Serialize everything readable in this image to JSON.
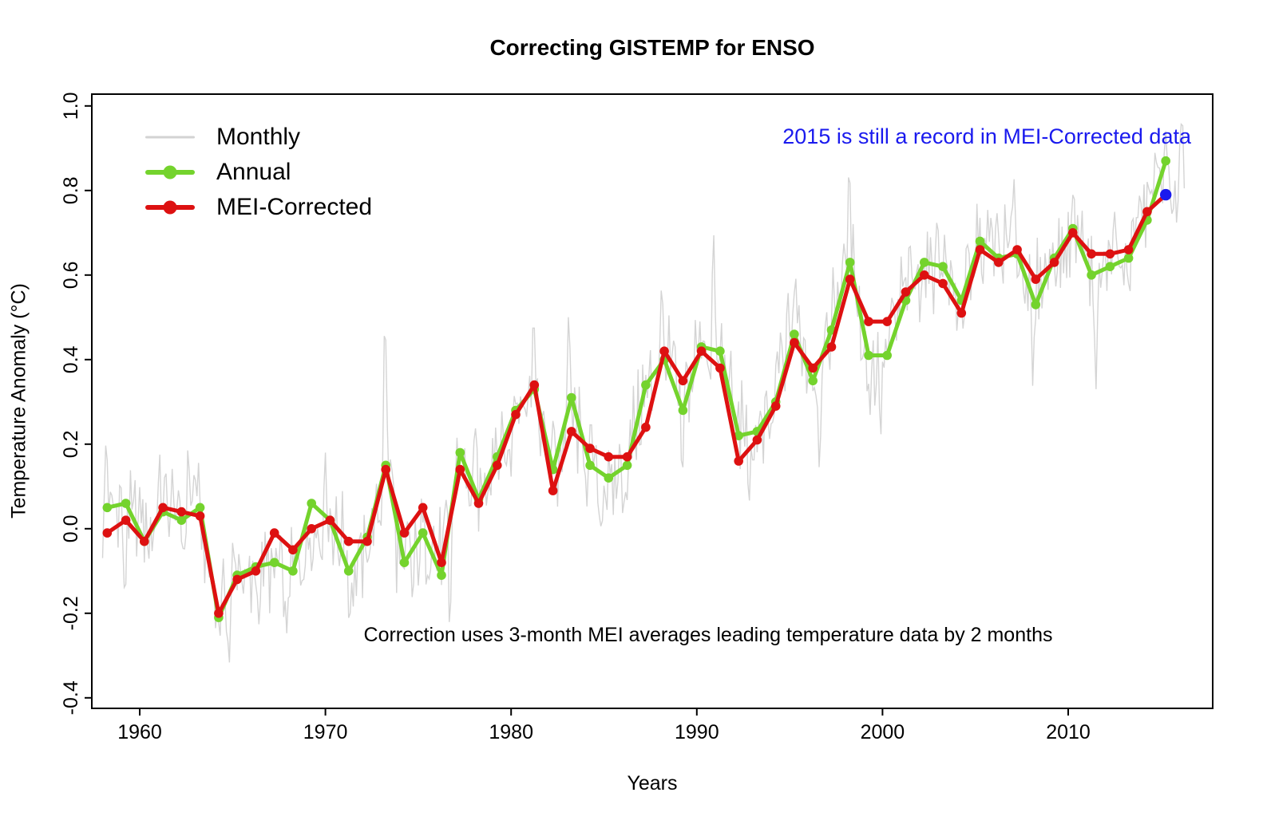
{
  "title": "Correcting GISTEMP for ENSO",
  "annotations": {
    "record_note": {
      "text": "2015 is still a record in MEI-Corrected data",
      "color": "#1a1aee"
    },
    "method_note": {
      "text": "Correction uses 3-month MEI averages leading temperature data by 2 months",
      "color": "#000000"
    }
  },
  "legend": {
    "items": [
      {
        "label": "Monthly",
        "color": "#d3d3d3",
        "marker": "line"
      },
      {
        "label": "Annual",
        "color": "#74d32d",
        "marker": "line-dot"
      },
      {
        "label": "MEI-Corrected",
        "color": "#dd1111",
        "marker": "line-dot"
      }
    ]
  },
  "chart_data": {
    "type": "line",
    "title": "Correcting GISTEMP for ENSO",
    "xlabel": "Years",
    "ylabel": "Temperature Anomaly (°C)",
    "xlim": [
      1957.42,
      2017.78
    ],
    "ylim": [
      -0.425,
      1.028
    ],
    "x_ticks": [
      1960,
      1970,
      1980,
      1990,
      2000,
      2010
    ],
    "y_ticks": [
      -0.4,
      -0.2,
      0.0,
      0.2,
      0.4,
      0.6,
      0.8,
      1.0
    ],
    "grid": false,
    "legend_position": "top-left",
    "years": [
      1958,
      1959,
      1960,
      1961,
      1962,
      1963,
      1964,
      1965,
      1966,
      1967,
      1968,
      1969,
      1970,
      1971,
      1972,
      1973,
      1974,
      1975,
      1976,
      1977,
      1978,
      1979,
      1980,
      1981,
      1982,
      1983,
      1984,
      1985,
      1986,
      1987,
      1988,
      1989,
      1990,
      1991,
      1992,
      1993,
      1994,
      1995,
      1996,
      1997,
      1998,
      1999,
      2000,
      2001,
      2002,
      2003,
      2004,
      2005,
      2006,
      2007,
      2008,
      2009,
      2010,
      2011,
      2012,
      2013,
      2014,
      2015
    ],
    "series": [
      {
        "name": "Annual",
        "color": "#74d32d",
        "values": [
          0.05,
          0.06,
          -0.03,
          0.04,
          0.02,
          0.05,
          -0.21,
          -0.11,
          -0.09,
          -0.08,
          -0.1,
          0.06,
          0.02,
          -0.1,
          -0.02,
          0.15,
          -0.08,
          -0.01,
          -0.11,
          0.18,
          0.07,
          0.17,
          0.28,
          0.33,
          0.14,
          0.31,
          0.15,
          0.12,
          0.15,
          0.34,
          0.4,
          0.28,
          0.43,
          0.42,
          0.22,
          0.23,
          0.3,
          0.46,
          0.35,
          0.47,
          0.63,
          0.41,
          0.41,
          0.54,
          0.63,
          0.62,
          0.54,
          0.68,
          0.64,
          0.65,
          0.53,
          0.64,
          0.71,
          0.6,
          0.62,
          0.64,
          0.73,
          0.87
        ]
      },
      {
        "name": "MEI-Corrected",
        "color": "#dd1111",
        "values": [
          -0.01,
          0.02,
          -0.03,
          0.05,
          0.04,
          0.03,
          -0.2,
          -0.12,
          -0.1,
          -0.01,
          -0.05,
          0.0,
          0.02,
          -0.03,
          -0.03,
          0.14,
          -0.01,
          0.05,
          -0.08,
          0.14,
          0.06,
          0.15,
          0.27,
          0.34,
          0.09,
          0.23,
          0.19,
          0.17,
          0.17,
          0.24,
          0.42,
          0.35,
          0.42,
          0.38,
          0.16,
          0.21,
          0.29,
          0.44,
          0.38,
          0.43,
          0.59,
          0.49,
          0.49,
          0.56,
          0.6,
          0.58,
          0.51,
          0.66,
          0.63,
          0.66,
          0.59,
          0.63,
          0.7,
          0.65,
          0.65,
          0.66,
          0.75,
          0.79
        ]
      }
    ],
    "monthly_approx": {
      "name": "Monthly",
      "color": "#d4d4d4",
      "start": 1958.0,
      "end": 2016.3,
      "per_year": 12,
      "noise_amplitudes": [
        0.085,
        0.045,
        0.05
      ],
      "extreme_keypoints": [
        [
          1958.2,
          0.25
        ],
        [
          1959.2,
          -0.22
        ],
        [
          1962.6,
          0.2
        ],
        [
          1964.8,
          -0.36
        ],
        [
          1967.9,
          -0.28
        ],
        [
          1970.0,
          0.18
        ],
        [
          1971.3,
          -0.25
        ],
        [
          1973.2,
          0.54
        ],
        [
          1974.7,
          -0.22
        ],
        [
          1976.7,
          -0.3
        ],
        [
          1978.1,
          0.25
        ],
        [
          1981.2,
          0.54
        ],
        [
          1983.1,
          0.52
        ],
        [
          1984.8,
          -0.02
        ],
        [
          1988.1,
          0.58
        ],
        [
          1989.2,
          0.1
        ],
        [
          1990.9,
          0.74
        ],
        [
          1992.8,
          -0.02
        ],
        [
          1995.3,
          0.6
        ],
        [
          1996.6,
          0.12
        ],
        [
          1998.2,
          0.87
        ],
        [
          1999.9,
          0.2
        ],
        [
          2002.9,
          0.72
        ],
        [
          2005.1,
          0.78
        ],
        [
          2007.1,
          0.86
        ],
        [
          2008.1,
          0.3
        ],
        [
          2010.3,
          0.82
        ],
        [
          2011.5,
          0.33
        ],
        [
          2013.9,
          0.77
        ],
        [
          2014.9,
          0.87
        ],
        [
          2015.85,
          0.7
        ],
        [
          2016.15,
          0.97
        ],
        [
          2016.3,
          0.75
        ]
      ]
    },
    "highlight_point": {
      "series": "MEI-Corrected",
      "year": 2015,
      "value": 0.79,
      "color": "#1a1aee"
    }
  }
}
